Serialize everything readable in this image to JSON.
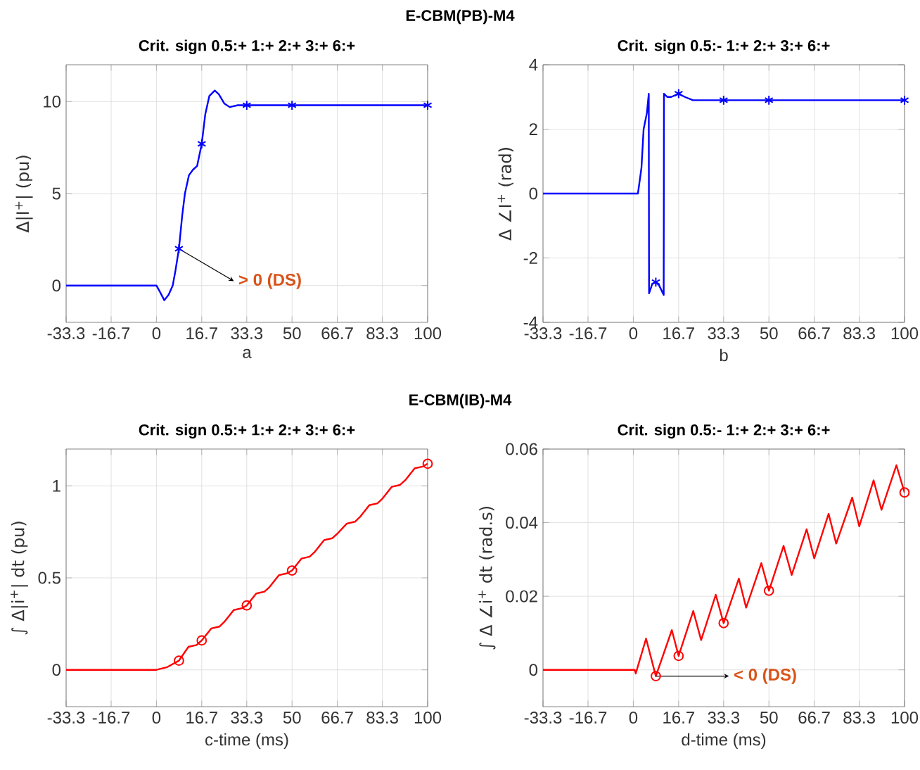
{
  "chart_data": [
    {
      "type": "line",
      "title": "E-CBM(PB)-M4",
      "subtitle": "Crit. sign 0.5:+  1:+  2:+  3:+  6:+",
      "xlabel": "a",
      "ylabel": "Δ|I$^{+}$| (pu)",
      "xlim": [
        -33.3,
        100
      ],
      "xticks": [
        -33.3,
        -16.7,
        0,
        16.7,
        33.3,
        50,
        66.7,
        83.3,
        100
      ],
      "ylim": [
        -2,
        12
      ],
      "yticks": [
        0,
        5,
        10
      ],
      "grid": true,
      "annotations": [
        {
          "text": "> 0 (DS)",
          "x": 8.3,
          "y": 2.0
        }
      ],
      "series": [
        {
          "color": "#0000ff",
          "x": [
            -33.3,
            0,
            1.5,
            2.9,
            4.5,
            6,
            7,
            8.3,
            9.5,
            10.5,
            12,
            13.5,
            15,
            16.7,
            18,
            19.5,
            21.5,
            23,
            25,
            27,
            30,
            33.3,
            50,
            100
          ],
          "values": [
            0,
            0,
            -0.4,
            -0.8,
            -0.5,
            0,
            0.8,
            2.0,
            3.8,
            5.0,
            6.0,
            6.3,
            6.5,
            7.7,
            9.3,
            10.3,
            10.6,
            10.4,
            9.9,
            9.7,
            9.8,
            9.8,
            9.8,
            9.8
          ]
        },
        {
          "type": "scatter",
          "marker": "cross",
          "color": "#0000ff",
          "x": [
            8.3,
            16.7,
            33.3,
            50,
            100
          ],
          "values": [
            2.0,
            7.7,
            9.8,
            9.8,
            9.8
          ]
        }
      ]
    },
    {
      "type": "line",
      "subtitle": "Crit. sign 0.5:-  1:+  2:+  3:+  6:+",
      "xlabel": "b",
      "ylabel": "Δ ∠I$^{+}$ (rad)",
      "xlim": [
        -33.3,
        100
      ],
      "xticks": [
        -33.3,
        -16.7,
        0,
        16.7,
        33.3,
        50,
        66.7,
        83.3,
        100
      ],
      "ylim": [
        -4,
        4
      ],
      "yticks": [
        -4,
        -2,
        0,
        2,
        4
      ],
      "grid": true,
      "series": [
        {
          "color": "#0000ff",
          "x": [
            -33.3,
            1.7,
            3.0,
            3.8,
            5.0,
            5.7,
            5.8,
            7,
            8.3,
            9.5,
            11.2,
            11.3,
            12.5,
            14,
            16.7,
            19,
            22,
            25,
            33.3,
            50,
            100
          ],
          "values": [
            0,
            0,
            0.8,
            2.0,
            2.5,
            3.1,
            -3.1,
            -2.8,
            -2.75,
            -2.85,
            -3.15,
            3.1,
            3.0,
            3.0,
            3.1,
            3.0,
            2.9,
            2.9,
            2.9,
            2.9,
            2.9
          ]
        },
        {
          "type": "scatter",
          "marker": "cross",
          "color": "#0000ff",
          "x": [
            8.3,
            16.7,
            33.3,
            50,
            100
          ],
          "values": [
            -2.75,
            3.1,
            2.9,
            2.9,
            2.9
          ]
        }
      ]
    },
    {
      "type": "line",
      "title": "E-CBM(IB)-M4",
      "subtitle": "Crit. sign 0.5:+  1:+  2:+  3:+  6:+",
      "xlabel": "c-time (ms)",
      "ylabel": "∫ Δ|i$^{+}$| dt (pu)",
      "xlim": [
        -33.3,
        100
      ],
      "xticks": [
        -33.3,
        -16.7,
        0,
        16.7,
        33.3,
        50,
        66.7,
        83.3,
        100
      ],
      "ylim": [
        -0.2,
        1.2
      ],
      "yticks": [
        0,
        0.5,
        1
      ],
      "grid": true,
      "series": [
        {
          "color": "#ff0000",
          "x": [
            -33.3,
            0,
            4,
            8.3,
            11.8,
            14.8,
            16.7,
            20.2,
            23.2,
            25,
            28.5,
            31.5,
            33.3,
            36.8,
            39.8,
            41.7,
            45.2,
            48.2,
            50,
            53.5,
            56.5,
            58.3,
            61.8,
            64.8,
            66.7,
            70.2,
            73.2,
            75,
            78.5,
            81.5,
            83.3,
            86.8,
            89.8,
            91.7,
            95.2,
            98.2,
            100
          ],
          "values": [
            0,
            0,
            0.015,
            0.05,
            0.125,
            0.135,
            0.16,
            0.225,
            0.235,
            0.26,
            0.325,
            0.335,
            0.35,
            0.415,
            0.425,
            0.45,
            0.515,
            0.525,
            0.54,
            0.605,
            0.615,
            0.64,
            0.705,
            0.715,
            0.74,
            0.795,
            0.805,
            0.83,
            0.895,
            0.905,
            0.93,
            0.995,
            1.005,
            1.03,
            1.095,
            1.105,
            1.12
          ]
        },
        {
          "type": "scatter",
          "marker": "circle",
          "color": "#ff0000",
          "x": [
            8.3,
            16.7,
            33.3,
            50,
            100
          ],
          "values": [
            0.05,
            0.16,
            0.35,
            0.54,
            1.12
          ]
        }
      ]
    },
    {
      "type": "line",
      "subtitle": "Crit. sign 0.5:-  1:+  2:+  3:+  6:+",
      "xlabel": "d-time (ms)",
      "ylabel": "∫ Δ ∠i$^{+}$ dt (rad.s)",
      "xlim": [
        -33.3,
        100
      ],
      "xticks": [
        -33.3,
        -16.7,
        0,
        16.7,
        33.3,
        50,
        66.7,
        83.3,
        100
      ],
      "ylim": [
        -0.01,
        0.06
      ],
      "yticks": [
        0,
        0.02,
        0.04,
        0.06
      ],
      "grid": true,
      "annotations": [
        {
          "text": "< 0 (DS)",
          "x": 8.3,
          "y": -0.0017
        }
      ],
      "series": [
        {
          "color": "#ff0000",
          "x": [
            -33.3,
            0.5,
            0.9,
            4.7,
            8.3,
            14.2,
            16.7,
            22.1,
            25,
            30.4,
            33.3,
            38.9,
            41.6,
            47.2,
            50,
            55.4,
            58.4,
            63.9,
            66.7,
            72,
            74.8,
            80.7,
            83.3,
            88.6,
            91.5,
            97,
            100
          ],
          "values": [
            0,
            0,
            -0.001,
            0.0085,
            -0.0017,
            0.0108,
            0.0038,
            0.016,
            0.0081,
            0.0204,
            0.0127,
            0.0248,
            0.0169,
            0.029,
            0.0215,
            0.0337,
            0.0258,
            0.0382,
            0.0303,
            0.0424,
            0.0343,
            0.0468,
            0.039,
            0.0515,
            0.0435,
            0.0556,
            0.0482
          ]
        },
        {
          "type": "scatter",
          "marker": "circle",
          "color": "#ff0000",
          "x": [
            8.3,
            16.7,
            33.3,
            50,
            100
          ],
          "values": [
            -0.0017,
            0.0038,
            0.0127,
            0.0215,
            0.0482
          ]
        }
      ]
    }
  ]
}
